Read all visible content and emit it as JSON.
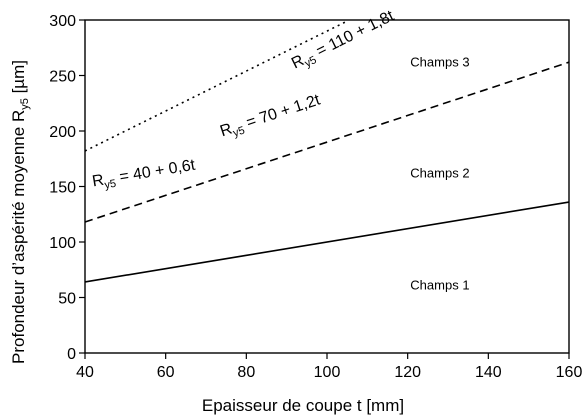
{
  "chart_data": {
    "type": "line",
    "xlabel": "Epaisseur de coupe t [mm]",
    "ylabel_main": "Profondeur d’aspérité moyenne R",
    "ylabel_sub": "y5",
    "ylabel_unit": " [µm]",
    "xlim": [
      40,
      160
    ],
    "ylim": [
      0,
      300
    ],
    "xticks": [
      40,
      60,
      80,
      100,
      120,
      140,
      160
    ],
    "yticks": [
      0,
      50,
      100,
      150,
      200,
      250,
      300
    ],
    "grid": false,
    "series": [
      {
        "name": "R_y5 = 40 + 0,6t",
        "style": "solid",
        "x": [
          40,
          160
        ],
        "y": [
          64,
          136
        ],
        "label": {
          "r": "R",
          "sub": "y5",
          "rest": " = 40 + 0,6t"
        }
      },
      {
        "name": "R_y5 = 70 + 1,2t",
        "style": "dashed",
        "x": [
          40,
          160
        ],
        "y": [
          118,
          262
        ],
        "label": {
          "r": "R",
          "sub": "y5",
          "rest": " = 70 + 1,2t"
        }
      },
      {
        "name": "R_y5 = 110 + 1,8t",
        "style": "dotted",
        "x": [
          40,
          105
        ],
        "y": [
          182,
          299
        ],
        "label": {
          "r": "R",
          "sub": "y5",
          "rest": " = 110 + 1,8t"
        }
      }
    ],
    "regions": [
      {
        "label": "Champs 3",
        "x": 128,
        "y": 258
      },
      {
        "label": "Champs 2",
        "x": 128,
        "y": 158
      },
      {
        "label": "Champs 1",
        "x": 128,
        "y": 57
      }
    ],
    "colors": {
      "line": "#000000",
      "axis": "#000000",
      "background": "#ffffff"
    }
  }
}
